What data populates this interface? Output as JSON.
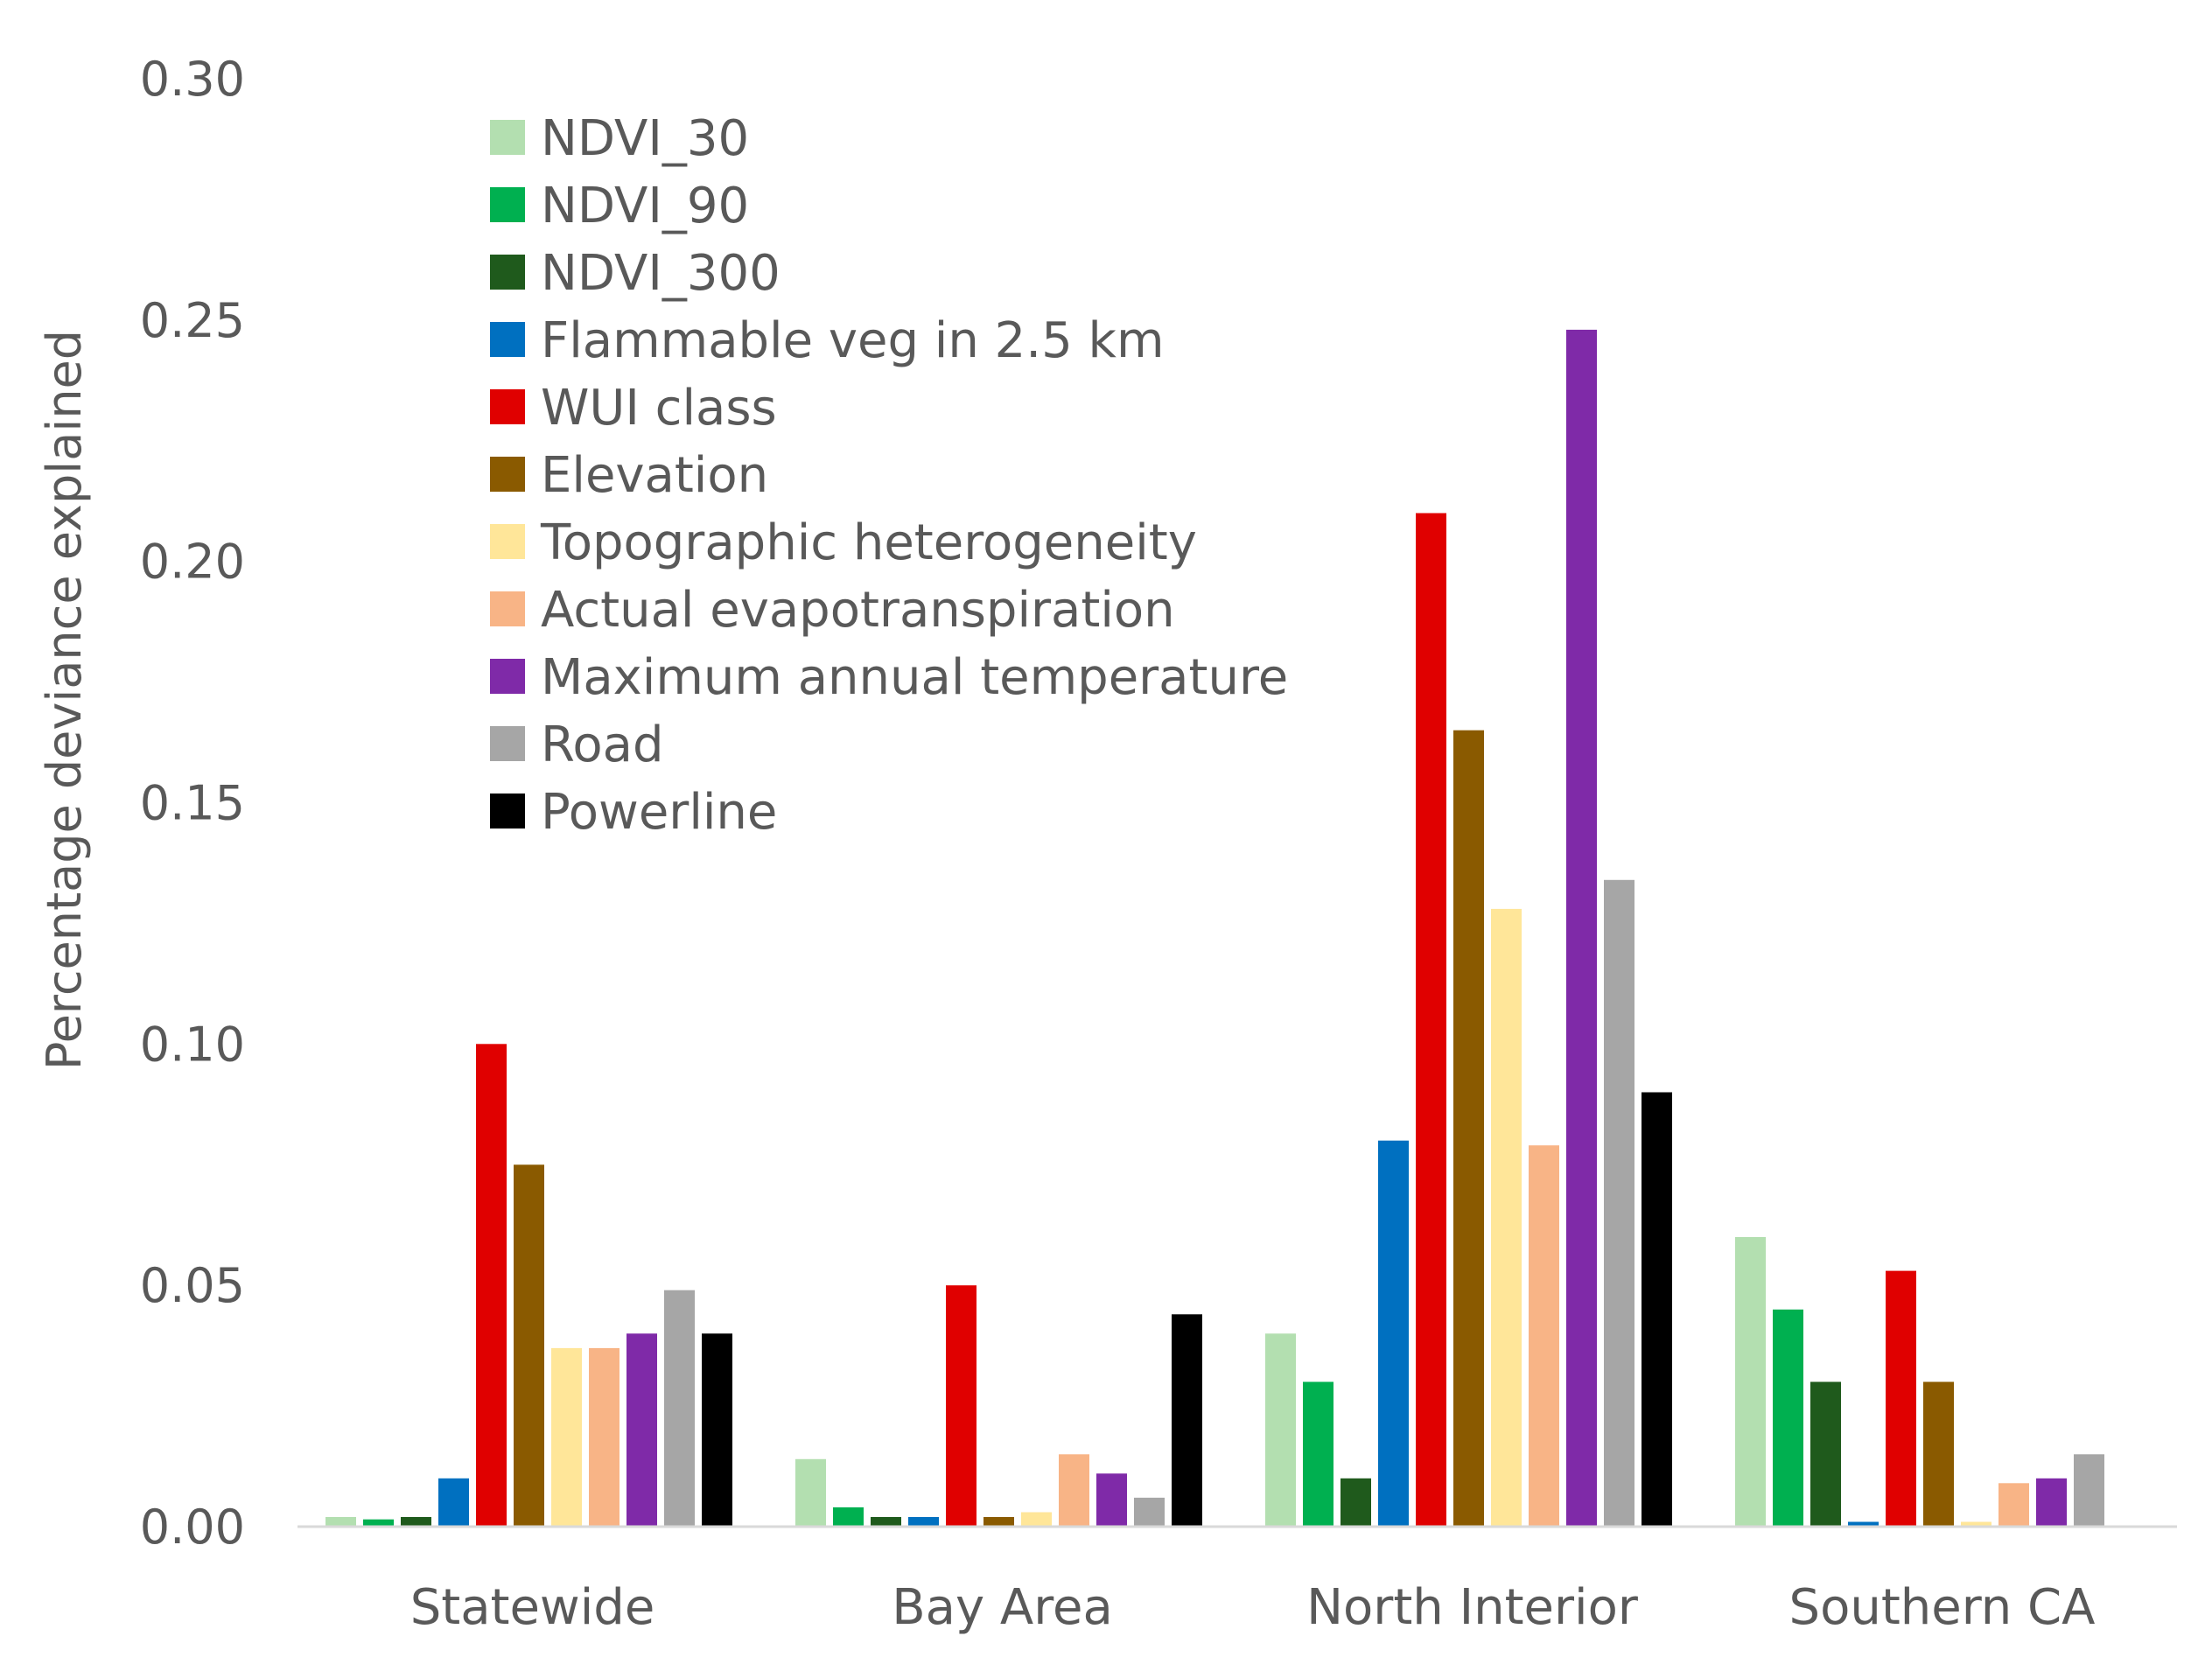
{
  "chart_data": {
    "type": "bar",
    "title": "",
    "xlabel": "",
    "ylabel": "Percentage deviance explained",
    "ylim": [
      0,
      0.3
    ],
    "yticks": [
      "0.00",
      "0.05",
      "0.10",
      "0.15",
      "0.20",
      "0.25",
      "0.30"
    ],
    "grid": false,
    "legend_position": "top-left",
    "categories": [
      "Statewide",
      "Bay Area",
      "North Interior",
      "Southern CA"
    ],
    "series": [
      {
        "name": "NDVI_30",
        "color": "#b3dfb0",
        "values": [
          0.002,
          0.014,
          0.04,
          0.06
        ]
      },
      {
        "name": "NDVI_90",
        "color": "#00b050",
        "values": [
          0.0015,
          0.004,
          0.03,
          0.045
        ]
      },
      {
        "name": "NDVI_300",
        "color": "#1f5a1c",
        "values": [
          0.002,
          0.002,
          0.01,
          0.03
        ]
      },
      {
        "name": "Flammable veg in 2.5 km",
        "color": "#0070c0",
        "values": [
          0.01,
          0.002,
          0.08,
          0.001
        ]
      },
      {
        "name": "WUI class",
        "color": "#e00000",
        "values": [
          0.1,
          0.05,
          0.21,
          0.053
        ]
      },
      {
        "name": "Elevation",
        "color": "#8a5a00",
        "values": [
          0.075,
          0.002,
          0.165,
          0.03
        ]
      },
      {
        "name": "Topographic heterogeneity",
        "color": "#ffe699",
        "values": [
          0.037,
          0.003,
          0.128,
          0.001
        ]
      },
      {
        "name": "Actual evapotranspiration",
        "color": "#f8b486",
        "values": [
          0.037,
          0.015,
          0.079,
          0.009
        ]
      },
      {
        "name": "Maximum annual temperature",
        "color": "#7f2aa8",
        "values": [
          0.04,
          0.011,
          0.248,
          0.01
        ]
      },
      {
        "name": "Road",
        "color": "#a6a6a6",
        "values": [
          0.049,
          0.006,
          0.134,
          0.015
        ]
      },
      {
        "name": "Powerline",
        "color": "#000000",
        "values": [
          0.04,
          0.044,
          0.09,
          0.0
        ]
      }
    ]
  }
}
